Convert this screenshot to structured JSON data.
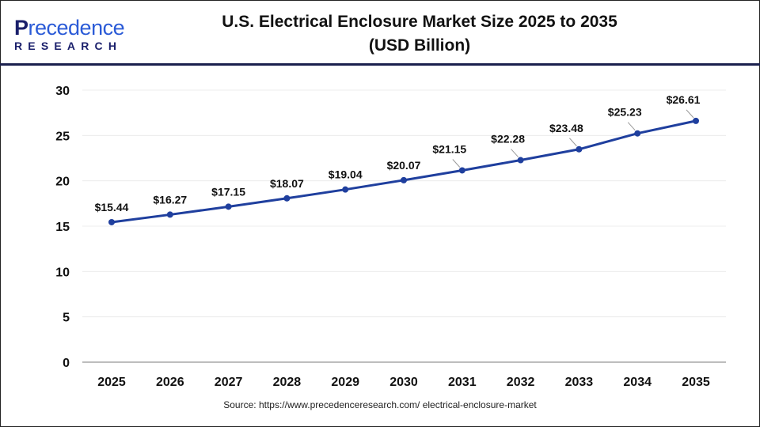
{
  "logo": {
    "main_first": "P",
    "main_rest": "recedence",
    "sub": "RESEARCH"
  },
  "title_line1": "U.S. Electrical Enclosure Market Size 2025 to 2035",
  "title_line2": "(USD Billion)",
  "source": "Source: https://www.precedenceresearch.com/ electrical-enclosure-market",
  "colors": {
    "line": "#1f3f9e",
    "grid": "#ececec",
    "axis": "#bdbdbd",
    "header_line": "#1a1f4d"
  },
  "chart_data": {
    "type": "line",
    "title": "U.S. Electrical Enclosure Market Size 2025 to 2035 (USD Billion)",
    "categories": [
      "2025",
      "2026",
      "2027",
      "2028",
      "2029",
      "2030",
      "2031",
      "2032",
      "2033",
      "2034",
      "2035"
    ],
    "values": [
      15.44,
      16.27,
      17.15,
      18.07,
      19.04,
      20.07,
      21.15,
      22.28,
      23.48,
      25.23,
      26.61
    ],
    "data_labels": [
      "$15.44",
      "$16.27",
      "$17.15",
      "$18.07",
      "$19.04",
      "$20.07",
      "$21.15",
      "$22.28",
      "$23.48",
      "$25.23",
      "$26.61"
    ],
    "ylim": [
      0,
      30
    ],
    "yticks": [
      "0",
      "5",
      "10",
      "15",
      "20",
      "25",
      "30"
    ],
    "grid": true,
    "legend": "none"
  }
}
